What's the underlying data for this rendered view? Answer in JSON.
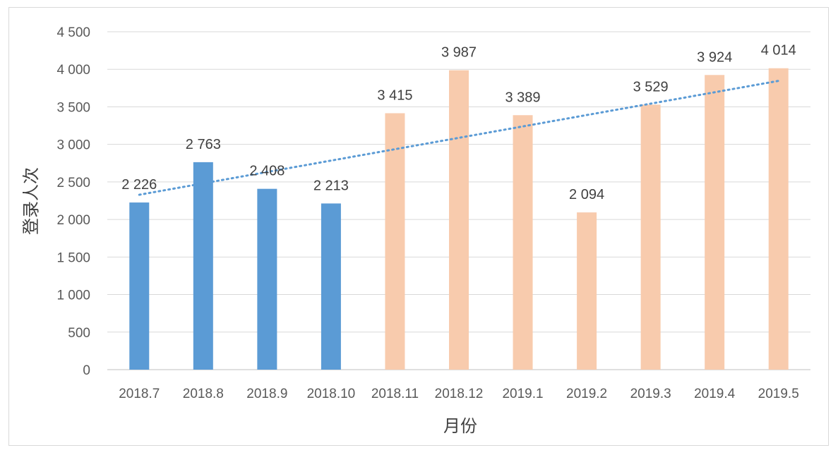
{
  "chart_data": {
    "type": "bar",
    "xlabel": "月份",
    "ylabel": "登录人次",
    "ylim": [
      0,
      4500
    ],
    "yticks": [
      0,
      500,
      1000,
      1500,
      2000,
      2500,
      3000,
      3500,
      4000,
      4500
    ],
    "ytick_labels": [
      "0",
      "500",
      "1 000",
      "1 500",
      "2 000",
      "2 500",
      "3 000",
      "3 500",
      "4 000",
      "4 500"
    ],
    "grid": true,
    "categories": [
      "2018.7",
      "2018.8",
      "2018.9",
      "2018.10",
      "2018.11",
      "2018.12",
      "2019.1",
      "2019.2",
      "2019.3",
      "2019.4",
      "2019.5"
    ],
    "values": [
      2226,
      2763,
      2408,
      2213,
      3415,
      3987,
      3389,
      2094,
      3529,
      3924,
      4014
    ],
    "value_labels": [
      "2 226",
      "2 763",
      "2 408",
      "2 213",
      "3 415",
      "3 987",
      "3 389",
      "2 094",
      "3 529",
      "3 924",
      "4 014"
    ],
    "bar_colors": [
      "#5b9bd5",
      "#5b9bd5",
      "#5b9bd5",
      "#5b9bd5",
      "#f8cbad",
      "#f8cbad",
      "#f8cbad",
      "#f8cbad",
      "#f8cbad",
      "#f8cbad",
      "#f8cbad"
    ],
    "trendline": {
      "type": "linear",
      "style": "dotted",
      "color": "#5b9bd5"
    }
  }
}
